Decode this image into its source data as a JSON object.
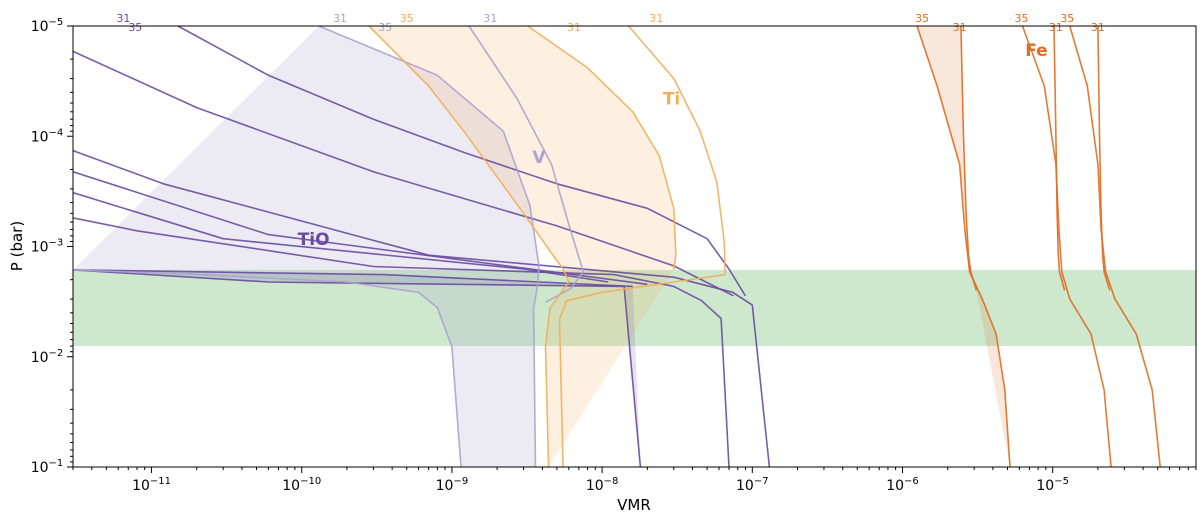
{
  "chart_data": {
    "type": "line",
    "xlabel": "VMR",
    "ylabel": "P (bar)",
    "x_scale": "log",
    "y_scale": "log",
    "y_inverted": true,
    "xlim": [
      3e-12,
      9e-05
    ],
    "ylim": [
      1e-05,
      0.1
    ],
    "x_ticks": [
      {
        "value": 1e-11,
        "base": "10",
        "exp": "−11"
      },
      {
        "value": 1e-10,
        "base": "10",
        "exp": "−10"
      },
      {
        "value": 1e-09,
        "base": "10",
        "exp": "−9"
      },
      {
        "value": 1e-08,
        "base": "10",
        "exp": "−8"
      },
      {
        "value": 1e-07,
        "base": "10",
        "exp": "−7"
      },
      {
        "value": 1e-06,
        "base": "10",
        "exp": "−6"
      },
      {
        "value": 1e-05,
        "base": "10",
        "exp": "−5"
      }
    ],
    "y_ticks": [
      {
        "value": 1e-05,
        "base": "10",
        "exp": "−5"
      },
      {
        "value": 0.0001,
        "base": "10",
        "exp": "−4"
      },
      {
        "value": 0.001,
        "base": "10",
        "exp": "−3"
      },
      {
        "value": 0.01,
        "base": "10",
        "exp": "−2"
      },
      {
        "value": 0.1,
        "base": "10",
        "exp": "−1"
      }
    ],
    "band": {
      "p_top": 0.00163,
      "p_bottom": 0.008,
      "color": "#cde8cd"
    },
    "species_labels": [
      {
        "text": "TiO",
        "x": 1.2e-10,
        "p": 0.00097,
        "color": "#6a4aa0"
      },
      {
        "text": "V",
        "x": 3.8e-09,
        "p": 0.000175,
        "color": "#aaa3cf"
      },
      {
        "text": "Ti",
        "x": 2.9e-08,
        "p": 5.15e-05,
        "color": "#f3ad5a"
      },
      {
        "text": "Fe",
        "x": 7.8e-06,
        "p": 1.88e-05,
        "color": "#e06c1f"
      }
    ],
    "series": [
      {
        "species": "TiO",
        "color": "#6a4aa0",
        "band_fill": "rgba(106,74,160,0.17)",
        "top_labels": [
          {
            "text": "31",
            "x": 6.5e-12
          },
          {
            "text": "35",
            "x": 7.8e-12
          }
        ],
        "curves": [
          {
            "x": [
              3e-12,
              6e-11,
              1.4e-08,
              1.8e-08
            ],
            "p": [
              0.00163,
              0.0021,
              0.0023,
              0.1
            ]
          },
          {
            "x": [
              3e-12,
              3.5e-10,
              1.6e-08
            ],
            "p": [
              0.00163,
              0.0018,
              0.0023
            ]
          },
          {
            "x": [
              3e-12,
              3e-11,
              3e-09,
              1.1e-08
            ],
            "p": [
              0.000325,
              0.00085,
              0.0016,
              0.0021
            ]
          },
          {
            "x": [
              3e-12,
              6e-11,
              2e-08
            ],
            "p": [
              0.00021,
              0.00078,
              0.0022
            ]
          },
          {
            "x": [
              3e-12,
              8e-12,
              3e-10,
              1.2e-08,
              3e-08,
              4.6e-08,
              6.2e-08,
              7e-08
            ],
            "p": [
              0.00055,
              0.00072,
              0.00152,
              0.0018,
              0.0023,
              0.0031,
              0.0045,
              0.1
            ]
          },
          {
            "x": [
              3e-12,
              1.2e-11,
              7e-10,
              3e-08,
              7.4e-08,
              1e-07,
              1.3e-07
            ],
            "p": [
              0.000135,
              0.00027,
              0.0012,
              0.0019,
              0.0026,
              0.0034,
              0.1
            ]
          },
          {
            "x": [
              1.5e-11,
              6e-11,
              3e-10,
              1.2e-09,
              5e-09,
              2e-08,
              5e-08,
              7e-08,
              9e-08
            ],
            "p": [
              1e-05,
              2.8e-05,
              7e-05,
              0.00014,
              0.00027,
              0.00045,
              0.00085,
              0.0016,
              0.0028
            ]
          },
          {
            "x": [
              3e-12,
              2e-11,
              3e-10,
              5e-09,
              3e-08,
              7.5e-08
            ],
            "p": [
              1.7e-05,
              5.5e-05,
              0.00021,
              0.00065,
              0.0015,
              0.0028
            ]
          }
        ]
      },
      {
        "species": "V",
        "color": "#aaa3cf",
        "band_fill": "rgba(170,163,207,0.22)",
        "top_labels": [
          {
            "text": "31",
            "x": 1.8e-10
          },
          {
            "text": "35",
            "x": 3.6e-10
          },
          {
            "text": "31",
            "x": 1.8e-09
          }
        ],
        "curves": [
          {
            "x": [
              3e-12,
              2e-11,
              2e-10,
              6e-10,
              8e-10,
              1e-09,
              1.15e-09
            ],
            "p": [
              0.00163,
              0.0018,
              0.0021,
              0.0026,
              0.0036,
              0.0081,
              0.1
            ]
          },
          {
            "x": [
              1.3e-10,
              8e-10,
              2.2e-09,
              3.3e-09,
              3.8e-09,
              3.7e-09,
              3.5e-09,
              3.6e-09
            ],
            "p": [
              1e-05,
              2.8e-05,
              9e-05,
              0.00042,
              0.0015,
              0.0023,
              0.0037,
              0.1
            ]
          },
          {
            "x": [
              1.3e-09,
              2.7e-09,
              4.6e-09,
              6e-09,
              7.5e-09,
              6.2e-09,
              4.2e-09
            ],
            "p": [
              1e-05,
              4.5e-05,
              0.00018,
              0.00063,
              0.0017,
              0.0024,
              0.0032
            ]
          }
        ]
      },
      {
        "species": "Ti",
        "color": "#f3ad5a",
        "band_fill": "rgba(243,173,90,0.18)",
        "top_labels": [
          {
            "text": "35",
            "x": 5e-10
          },
          {
            "text": "31",
            "x": 6.5e-09
          },
          {
            "text": "31",
            "x": 2.3e-08
          }
        ],
        "curves": [
          {
            "x": [
              2.8e-10,
              7e-10,
              1.2e-09,
              3e-09,
              4.5e-09,
              5.5e-09,
              6e-09,
              4.5e-09,
              4.2e-09,
              4.4e-09
            ],
            "p": [
              1e-05,
              3.5e-05,
              9e-05,
              0.0005,
              0.0011,
              0.0016,
              0.0021,
              0.0036,
              0.0081,
              0.1
            ]
          },
          {
            "x": [
              3.2e-09,
              8e-09,
              1.6e-08,
              2.4e-08,
              3e-08,
              3.1e-08,
              3e-08
            ],
            "p": [
              1e-05,
              2.4e-05,
              6e-05,
              0.00015,
              0.00045,
              0.0012,
              0.00163
            ]
          },
          {
            "x": [
              1.5e-08,
              3e-08,
              4.5e-08,
              5.8e-08,
              6.5e-08,
              6.6e-08
            ],
            "p": [
              1e-05,
              3e-05,
              9e-05,
              0.00026,
              0.0009,
              0.0018
            ]
          },
          {
            "x": [
              6.6e-08,
              3e-08,
              1e-08,
              5.8e-09,
              5.2e-09,
              5.5e-09
            ],
            "p": [
              0.0018,
              0.0021,
              0.0026,
              0.0031,
              0.0046,
              0.1
            ]
          }
        ]
      },
      {
        "species": "Fe",
        "color": "#e06c1f",
        "band_fill": "rgba(224,108,31,0.16)",
        "top_labels": [
          {
            "text": "35",
            "x": 1.35e-06
          },
          {
            "text": "31",
            "x": 2.4e-06
          },
          {
            "text": "35",
            "x": 6.2e-06
          },
          {
            "text": "31",
            "x": 1.05e-05
          },
          {
            "text": "35",
            "x": 1.25e-05
          },
          {
            "text": "31",
            "x": 2e-05
          }
        ],
        "curves": [
          {
            "x": [
              1.25e-06,
              1.7e-06,
              2.4e-06,
              2.6e-06,
              2.8e-06,
              3.4e-06,
              4.2e-06,
              4.8e-06,
              5.2e-06
            ],
            "p": [
              1e-05,
              3.5e-05,
              0.00018,
              0.0007,
              0.0017,
              0.003,
              0.0062,
              0.02,
              0.1
            ]
          },
          {
            "x": [
              2.45e-06,
              2.55e-06,
              2.65e-06,
              2.75e-06,
              2.85e-06,
              3.1e-06
            ],
            "p": [
              1e-05,
              0.0001,
              0.0005,
              0.0012,
              0.0017,
              0.0025
            ]
          },
          {
            "x": [
              6.3e-06,
              8.8e-06,
              1.05e-05,
              1.1e-05,
              1.15e-05,
              1.3e-05,
              1.8e-05,
              2.2e-05,
              2.45e-05
            ],
            "p": [
              1e-05,
              3.5e-05,
              0.00018,
              0.0007,
              0.0017,
              0.003,
              0.0062,
              0.02,
              0.1
            ]
          },
          {
            "x": [
              1.02e-05,
              1.05e-05,
              1.07e-05,
              1.09e-05,
              1.11e-05,
              1.2e-05
            ],
            "p": [
              1e-05,
              0.0001,
              0.0005,
              0.0012,
              0.0017,
              0.0025
            ]
          },
          {
            "x": [
              1.3e-05,
              1.7e-05,
              2e-05,
              2.1e-05,
              2.25e-05,
              2.6e-05,
              3.6e-05,
              4.6e-05,
              5.2e-05
            ],
            "p": [
              1e-05,
              3.5e-05,
              0.00018,
              0.0007,
              0.0017,
              0.003,
              0.0062,
              0.02,
              0.1
            ]
          },
          {
            "x": [
              2e-05,
              2.05e-05,
              2.1e-05,
              2.15e-05,
              2.2e-05,
              2.4e-05
            ],
            "p": [
              1e-05,
              0.0001,
              0.0005,
              0.0012,
              0.0017,
              0.0025
            ]
          }
        ]
      }
    ]
  }
}
